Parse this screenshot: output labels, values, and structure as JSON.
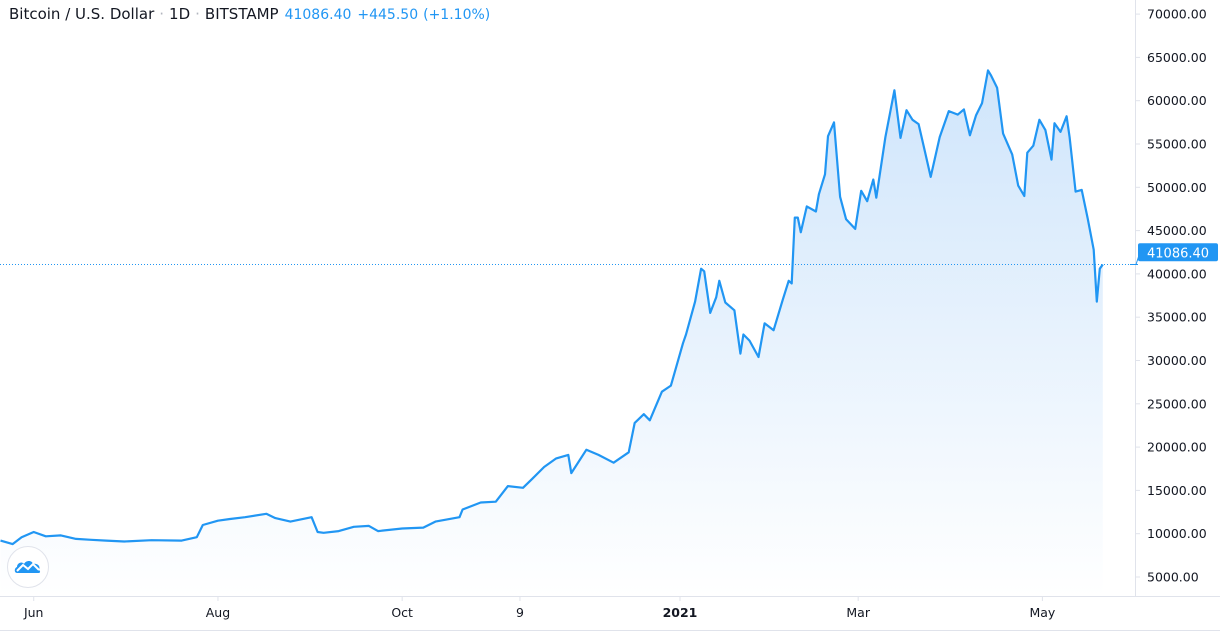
{
  "header": {
    "symbol": "Bitcoin / U.S. Dollar",
    "interval": "1D",
    "exchange": "BITSTAMP",
    "last_price": "41086.40",
    "change": "+445.50",
    "change_pct": "(+1.10%)",
    "separator": "·"
  },
  "logo": {
    "icon": "tradingview-cloud-icon"
  },
  "colors": {
    "line": "#2196f3",
    "fill_top": "#cfe5fb",
    "fill_bottom": "#ffffff",
    "text": "#131722",
    "price_label_bg": "#2196f3"
  },
  "chart_data": {
    "type": "area",
    "title": "Bitcoin / U.S. Dollar · 1D · BITSTAMP",
    "xlabel": "",
    "ylabel": "",
    "ylim": [
      3000,
      71500
    ],
    "grid": false,
    "y_ticks": [
      "70000.00",
      "65000.00",
      "60000.00",
      "55000.00",
      "50000.00",
      "45000.00",
      "40000.00",
      "35000.00",
      "30000.00",
      "25000.00",
      "20000.00",
      "15000.00",
      "10000.00",
      "5000.00"
    ],
    "x_ticks": [
      {
        "label": "Jun",
        "date": "2020-06-01",
        "bold": false
      },
      {
        "label": "Aug",
        "date": "2020-08-01",
        "bold": false
      },
      {
        "label": "Oct",
        "date": "2020-10-01",
        "bold": false
      },
      {
        "label": "9",
        "date": "2020-11-09",
        "bold": false
      },
      {
        "label": "2021",
        "date": "2021-01-01",
        "bold": true
      },
      {
        "label": "Mar",
        "date": "2021-03-01",
        "bold": false
      },
      {
        "label": "May",
        "date": "2021-05-01",
        "bold": false
      }
    ],
    "last_price_label": "41086.40",
    "series": [
      {
        "points": [
          [
            "2020-05-21",
            9200
          ],
          [
            "2020-05-25",
            8800
          ],
          [
            "2020-05-28",
            9600
          ],
          [
            "2020-06-01",
            10200
          ],
          [
            "2020-06-05",
            9700
          ],
          [
            "2020-06-10",
            9800
          ],
          [
            "2020-06-15",
            9400
          ],
          [
            "2020-06-20",
            9300
          ],
          [
            "2020-06-25",
            9200
          ],
          [
            "2020-07-01",
            9100
          ],
          [
            "2020-07-10",
            9250
          ],
          [
            "2020-07-20",
            9200
          ],
          [
            "2020-07-25",
            9600
          ],
          [
            "2020-07-27",
            11000
          ],
          [
            "2020-08-01",
            11500
          ],
          [
            "2020-08-05",
            11700
          ],
          [
            "2020-08-10",
            11900
          ],
          [
            "2020-08-17",
            12300
          ],
          [
            "2020-08-20",
            11800
          ],
          [
            "2020-08-25",
            11400
          ],
          [
            "2020-09-01",
            11900
          ],
          [
            "2020-09-03",
            10200
          ],
          [
            "2020-09-05",
            10100
          ],
          [
            "2020-09-10",
            10300
          ],
          [
            "2020-09-15",
            10800
          ],
          [
            "2020-09-20",
            10900
          ],
          [
            "2020-09-23",
            10300
          ],
          [
            "2020-10-01",
            10600
          ],
          [
            "2020-10-08",
            10700
          ],
          [
            "2020-10-12",
            11400
          ],
          [
            "2020-10-20",
            11900
          ],
          [
            "2020-10-21",
            12800
          ],
          [
            "2020-10-27",
            13600
          ],
          [
            "2020-11-01",
            13700
          ],
          [
            "2020-11-05",
            15500
          ],
          [
            "2020-11-10",
            15300
          ],
          [
            "2020-11-13",
            16300
          ],
          [
            "2020-11-17",
            17700
          ],
          [
            "2020-11-21",
            18700
          ],
          [
            "2020-11-25",
            19100
          ],
          [
            "2020-11-26",
            17000
          ],
          [
            "2020-12-01",
            19700
          ],
          [
            "2020-12-05",
            19100
          ],
          [
            "2020-12-10",
            18200
          ],
          [
            "2020-12-15",
            19400
          ],
          [
            "2020-12-17",
            22800
          ],
          [
            "2020-12-20",
            23800
          ],
          [
            "2020-12-22",
            23100
          ],
          [
            "2020-12-26",
            26400
          ],
          [
            "2020-12-29",
            27100
          ],
          [
            "2021-01-02",
            32000
          ],
          [
            "2021-01-03",
            33000
          ],
          [
            "2021-01-06",
            36800
          ],
          [
            "2021-01-08",
            40600
          ],
          [
            "2021-01-09",
            40300
          ],
          [
            "2021-01-11",
            35500
          ],
          [
            "2021-01-13",
            37300
          ],
          [
            "2021-01-14",
            39200
          ],
          [
            "2021-01-16",
            36700
          ],
          [
            "2021-01-19",
            35800
          ],
          [
            "2021-01-21",
            30800
          ],
          [
            "2021-01-22",
            33000
          ],
          [
            "2021-01-24",
            32300
          ],
          [
            "2021-01-27",
            30400
          ],
          [
            "2021-01-29",
            34300
          ],
          [
            "2021-02-01",
            33500
          ],
          [
            "2021-02-04",
            37000
          ],
          [
            "2021-02-06",
            39200
          ],
          [
            "2021-02-07",
            38900
          ],
          [
            "2021-02-08",
            46500
          ],
          [
            "2021-02-09",
            46500
          ],
          [
            "2021-02-10",
            44800
          ],
          [
            "2021-02-12",
            47800
          ],
          [
            "2021-02-15",
            47200
          ],
          [
            "2021-02-16",
            49200
          ],
          [
            "2021-02-18",
            51500
          ],
          [
            "2021-02-19",
            55900
          ],
          [
            "2021-02-21",
            57500
          ],
          [
            "2021-02-23",
            48900
          ],
          [
            "2021-02-25",
            46300
          ],
          [
            "2021-02-28",
            45200
          ],
          [
            "2021-03-02",
            49600
          ],
          [
            "2021-03-04",
            48400
          ],
          [
            "2021-03-06",
            50900
          ],
          [
            "2021-03-07",
            48800
          ],
          [
            "2021-03-10",
            55800
          ],
          [
            "2021-03-13",
            61200
          ],
          [
            "2021-03-15",
            55700
          ],
          [
            "2021-03-17",
            58900
          ],
          [
            "2021-03-19",
            57800
          ],
          [
            "2021-03-21",
            57300
          ],
          [
            "2021-03-23",
            54300
          ],
          [
            "2021-03-25",
            51200
          ],
          [
            "2021-03-28",
            55800
          ],
          [
            "2021-03-31",
            58800
          ],
          [
            "2021-04-03",
            58400
          ],
          [
            "2021-04-05",
            59000
          ],
          [
            "2021-04-07",
            56000
          ],
          [
            "2021-04-09",
            58300
          ],
          [
            "2021-04-11",
            59700
          ],
          [
            "2021-04-13",
            63500
          ],
          [
            "2021-04-14",
            62900
          ],
          [
            "2021-04-16",
            61500
          ],
          [
            "2021-04-18",
            56200
          ],
          [
            "2021-04-21",
            53800
          ],
          [
            "2021-04-23",
            50200
          ],
          [
            "2021-04-25",
            49000
          ],
          [
            "2021-04-26",
            54000
          ],
          [
            "2021-04-28",
            54800
          ],
          [
            "2021-04-30",
            57800
          ],
          [
            "2021-05-02",
            56600
          ],
          [
            "2021-05-04",
            53200
          ],
          [
            "2021-05-05",
            57400
          ],
          [
            "2021-05-07",
            56400
          ],
          [
            "2021-05-09",
            58200
          ],
          [
            "2021-05-10",
            55800
          ],
          [
            "2021-05-12",
            49500
          ],
          [
            "2021-05-14",
            49700
          ],
          [
            "2021-05-16",
            46400
          ],
          [
            "2021-05-18",
            42800
          ],
          [
            "2021-05-19",
            36800
          ],
          [
            "2021-05-20",
            40600
          ],
          [
            "2021-05-21",
            41086.4
          ]
        ]
      }
    ]
  }
}
